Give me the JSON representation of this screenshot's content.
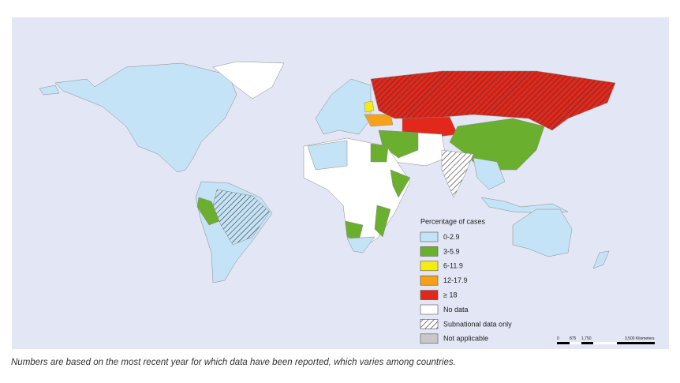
{
  "legend": {
    "title": "Percentage of cases",
    "items": [
      {
        "label": "0-2.9",
        "color": "#c5e3f6"
      },
      {
        "label": "3-5.9",
        "color": "#6aaf2d"
      },
      {
        "label": "6-11.9",
        "color": "#f7ec12"
      },
      {
        "label": "12-17.9",
        "color": "#f7a11a"
      },
      {
        "label": "≥ 18",
        "color": "#e2271b"
      },
      {
        "label": "No data",
        "color": "#ffffff"
      },
      {
        "label": "Subnational data only",
        "color": "#ffffff",
        "hatched": true
      },
      {
        "label": "Not applicable",
        "color": "#c8c8c8"
      }
    ]
  },
  "scale_bar": {
    "labels": [
      "0",
      "875",
      "1,750",
      "3,500 Kilometers"
    ]
  },
  "caption": "Numbers are based on the most recent year for which data have been reported, which varies among countries."
}
